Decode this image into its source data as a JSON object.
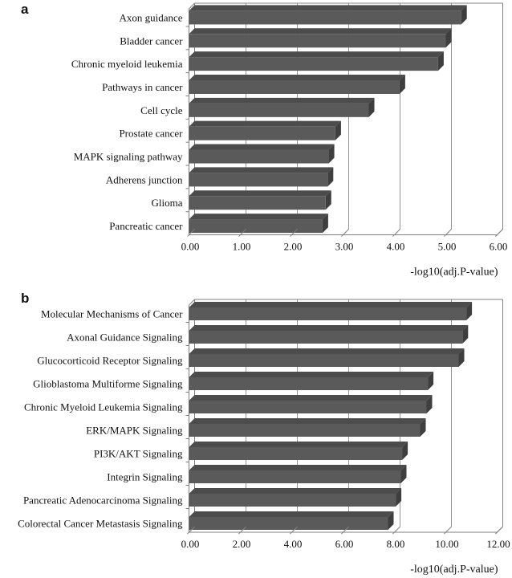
{
  "figure": {
    "background": "#ffffff",
    "text_color": "#111111",
    "bar_face_color": "#5a5a5a",
    "bar_top_color": "#4c4c4c",
    "bar_end_color": "#3e3e3e",
    "gridline_color": "#969696",
    "frame_color": "#7f7f7f"
  },
  "panels": [
    {
      "label": "a"
    },
    {
      "label": "b"
    }
  ],
  "chart_data": [
    {
      "type": "bar",
      "orientation": "horizontal",
      "style": "3d",
      "panel": "a",
      "title": "",
      "categories": [
        "Axon guidance",
        "Bladder cancer",
        "Chronic myeloid leukemia",
        "Pathways in cancer",
        "Cell cycle",
        "Prostate cancer",
        "MAPK signaling pathway",
        "Adherens junction",
        "Glioma",
        "Pancreatic cancer"
      ],
      "values": [
        5.3,
        5.0,
        4.85,
        4.1,
        3.5,
        2.85,
        2.72,
        2.7,
        2.66,
        2.6
      ],
      "xlabel": "-log10(adj.P-value)",
      "ylabel": "",
      "xlim": [
        0,
        6
      ],
      "xtick_step": 1,
      "xtick_labels": [
        "0.00",
        "1.00",
        "2.00",
        "3.00",
        "4.00",
        "5.00",
        "6.00"
      ],
      "grid": true,
      "legend": false
    },
    {
      "type": "bar",
      "orientation": "horizontal",
      "style": "3d",
      "panel": "b",
      "title": "",
      "categories": [
        "Molecular Mechanisms of Cancer",
        "Axonal Guidance Signaling",
        "Glucocorticoid Receptor Signaling",
        "Glioblastoma Multiforme Signaling",
        "Chronic Myeloid Leukemia Signaling",
        "ERK/MAPK Signaling",
        "PI3K/AKT Signaling",
        "Integrin Signaling",
        "Pancreatic Adenocarcinoma Signaling",
        "Colorectal Cancer Metastasis Signaling"
      ],
      "values": [
        10.8,
        10.65,
        10.5,
        9.3,
        9.25,
        9.0,
        8.3,
        8.25,
        8.05,
        7.75
      ],
      "xlabel": "-log10(adj.P-value)",
      "ylabel": "",
      "xlim": [
        0,
        12
      ],
      "xtick_step": 2,
      "xtick_labels": [
        "0.00",
        "2.00",
        "4.00",
        "6.00",
        "8.00",
        "10.00",
        "12.00"
      ],
      "grid": true,
      "legend": false
    }
  ]
}
